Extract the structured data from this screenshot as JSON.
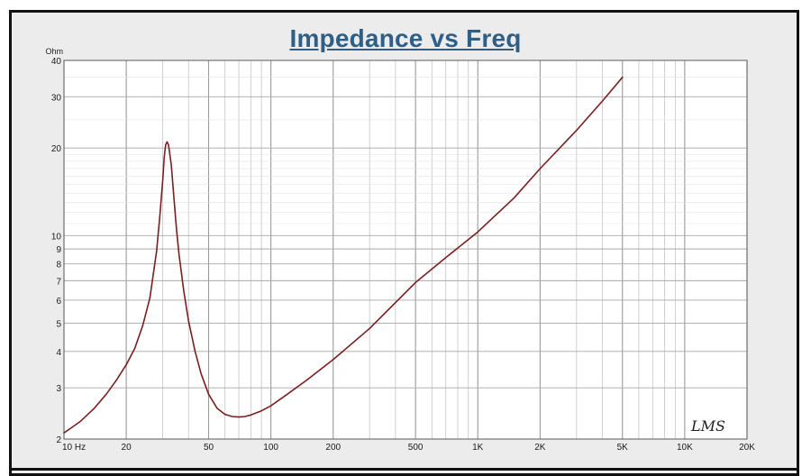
{
  "chart_data": {
    "type": "line",
    "title": "Impedance vs Freq",
    "ylabel": "Ohm",
    "xlabel": "",
    "x_scale": "log",
    "y_scale": "log",
    "xlim": [
      10,
      20000
    ],
    "ylim": [
      2,
      40
    ],
    "grid": true,
    "x_ticks": [
      {
        "value": 10,
        "label": "10  Hz"
      },
      {
        "value": 20,
        "label": "20"
      },
      {
        "value": 50,
        "label": "50"
      },
      {
        "value": 100,
        "label": "100"
      },
      {
        "value": 200,
        "label": "200"
      },
      {
        "value": 500,
        "label": "500"
      },
      {
        "value": 1000,
        "label": "1K"
      },
      {
        "value": 2000,
        "label": "2K"
      },
      {
        "value": 5000,
        "label": "5K"
      },
      {
        "value": 10000,
        "label": "10K"
      },
      {
        "value": 20000,
        "label": "20K"
      }
    ],
    "y_ticks": [
      {
        "value": 2,
        "label": "2"
      },
      {
        "value": 3,
        "label": "3"
      },
      {
        "value": 4,
        "label": "4"
      },
      {
        "value": 5,
        "label": "5"
      },
      {
        "value": 6,
        "label": "6"
      },
      {
        "value": 7,
        "label": "7"
      },
      {
        "value": 8,
        "label": "8"
      },
      {
        "value": 9,
        "label": "9"
      },
      {
        "value": 10,
        "label": "10"
      },
      {
        "value": 20,
        "label": "20"
      },
      {
        "value": 30,
        "label": "30"
      },
      {
        "value": 40,
        "label": "40"
      }
    ],
    "series": [
      {
        "color": "#7a1f1f",
        "x": [
          10,
          11,
          12,
          14,
          16,
          18,
          20,
          22,
          24,
          26,
          28,
          29,
          30,
          30.5,
          31,
          31.5,
          32,
          33,
          34,
          35,
          36,
          38,
          40,
          43,
          46,
          50,
          55,
          60,
          65,
          70,
          75,
          80,
          90,
          100,
          120,
          150,
          200,
          300,
          500,
          700,
          1000,
          1500,
          2000,
          3000,
          4000,
          5000
        ],
        "y": [
          2.1,
          2.2,
          2.3,
          2.55,
          2.85,
          3.2,
          3.6,
          4.1,
          4.9,
          6.1,
          8.8,
          11.5,
          15.5,
          18.5,
          20.5,
          21.0,
          20.5,
          17.5,
          13.5,
          10.5,
          8.6,
          6.4,
          5.1,
          4.0,
          3.35,
          2.85,
          2.55,
          2.43,
          2.39,
          2.38,
          2.39,
          2.42,
          2.5,
          2.6,
          2.85,
          3.2,
          3.75,
          4.8,
          6.9,
          8.4,
          10.3,
          13.5,
          17.0,
          23.0,
          29.0,
          35.0
        ]
      }
    ],
    "watermark": "LMS"
  }
}
